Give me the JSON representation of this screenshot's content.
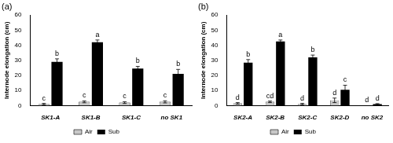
{
  "chart_data": [
    {
      "type": "bar",
      "title": "(a)",
      "y_label": "Internode elongation (cm)",
      "categories": [
        "SK1-A",
        "SK1-B",
        "SK1-C",
        "no SK1"
      ],
      "series": [
        {
          "name": "Air",
          "color": "#c8c8c8",
          "values": [
            1,
            2.5,
            2,
            2.5
          ],
          "errors": [
            0.5,
            0.6,
            0.6,
            0.7
          ],
          "letters": [
            "c",
            "c",
            "c",
            "c"
          ]
        },
        {
          "name": "Sub",
          "color": "#000000",
          "values": [
            29,
            42,
            24.5,
            21
          ],
          "errors": [
            2,
            1.5,
            1.5,
            3
          ],
          "letters": [
            "b",
            "a",
            "b",
            "b"
          ]
        }
      ],
      "ylim": [
        0,
        60
      ],
      "yticks": [
        0,
        10,
        20,
        30,
        40,
        50,
        60
      ],
      "grid": false,
      "legend": "bottom"
    },
    {
      "type": "bar",
      "title": "(b)",
      "y_label": "Internode elongation (cm)",
      "categories": [
        "SK2-A",
        "SK2-B",
        "SK2-C",
        "SK2-D",
        "no SK2"
      ],
      "series": [
        {
          "name": "Air",
          "color": "#c8c8c8",
          "values": [
            1.5,
            2.5,
            1,
            3.5,
            0
          ],
          "errors": [
            0.5,
            0.5,
            0.5,
            1.5,
            0
          ],
          "letters": [
            "d",
            "cd",
            "d",
            "d",
            "d"
          ]
        },
        {
          "name": "Sub",
          "color": "#000000",
          "values": [
            28.5,
            42.5,
            32,
            10.5,
            1
          ],
          "errors": [
            2,
            1,
            1.5,
            3,
            0.3
          ],
          "letters": [
            "b",
            "a",
            "b",
            "c",
            "d"
          ]
        }
      ],
      "ylim": [
        0,
        60
      ],
      "yticks": [
        0,
        10,
        20,
        30,
        40,
        50,
        60
      ],
      "grid": false,
      "legend": "bottom"
    }
  ]
}
